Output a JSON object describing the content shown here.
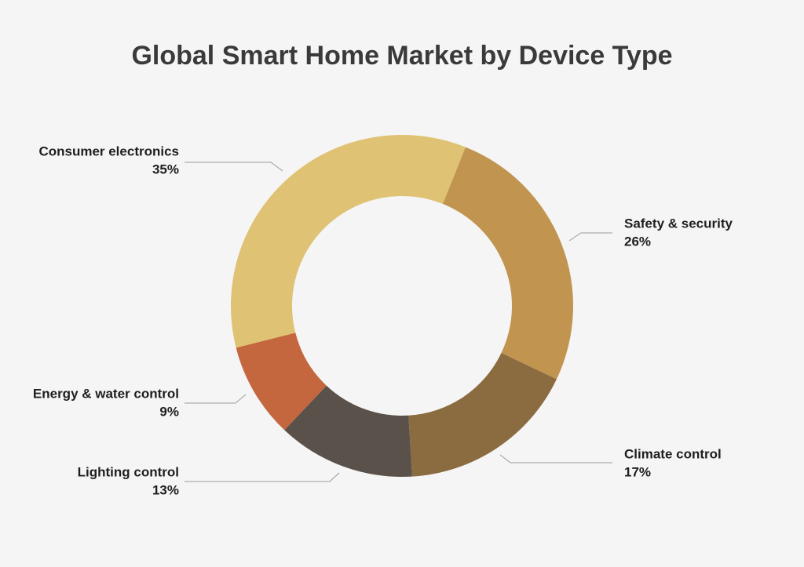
{
  "chart_data": {
    "type": "donut",
    "title": "Global Smart Home Market by Device Type",
    "categories": [
      "Consumer electronics",
      "Safety & security",
      "Climate control",
      "Lighting control",
      "Energy & water control"
    ],
    "values": [
      35,
      26,
      17,
      13,
      9
    ],
    "value_labels": [
      "35%",
      "26%",
      "17%",
      "13%",
      "9%"
    ],
    "colors": [
      "#dfc273",
      "#c1944f",
      "#8b6b40",
      "#5a514a",
      "#c4673f"
    ]
  }
}
